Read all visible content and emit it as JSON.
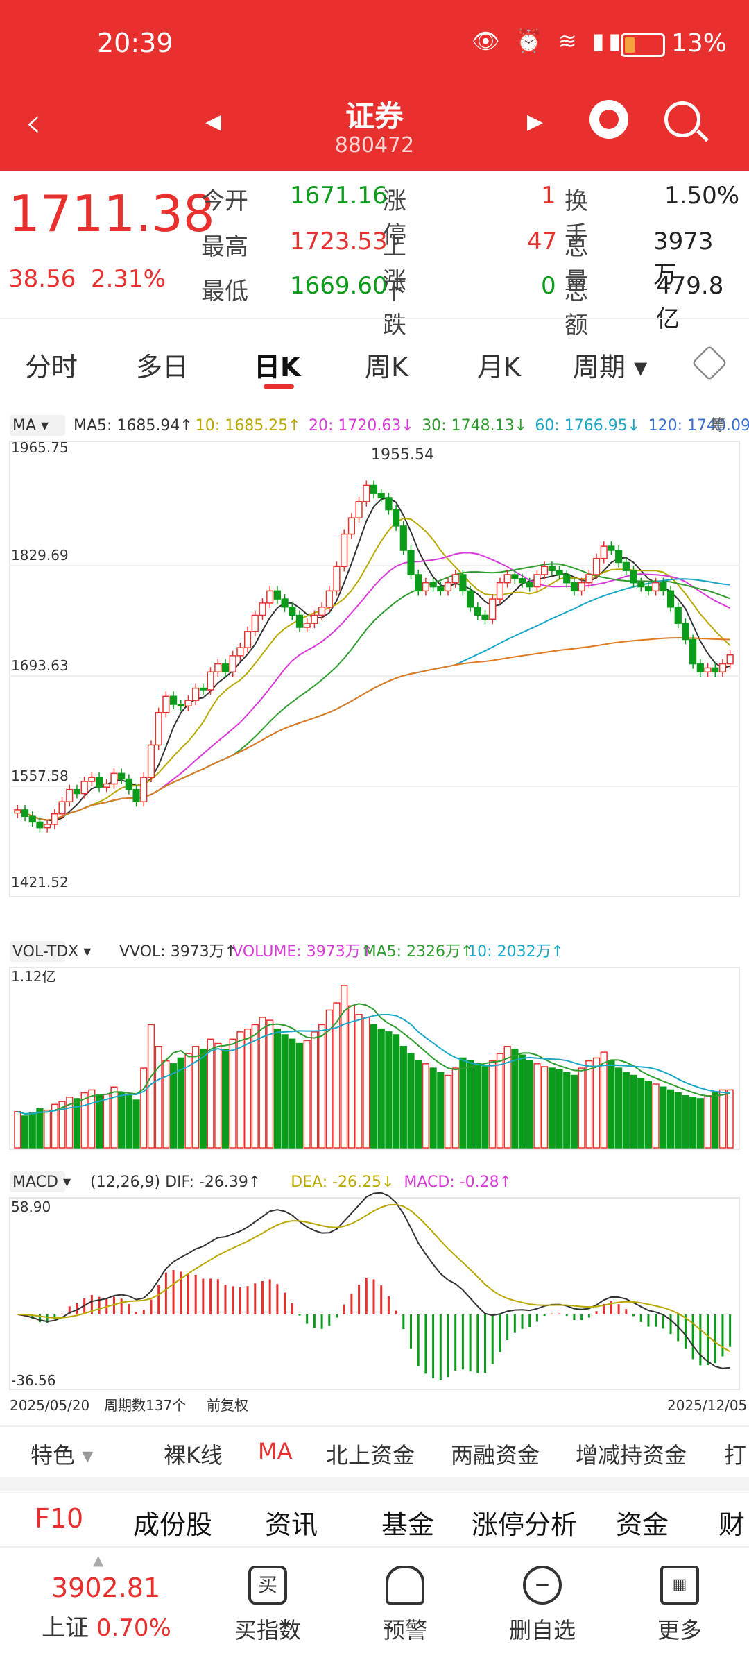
{
  "status": {
    "time": "20:39",
    "battery": "13%"
  },
  "header": {
    "back": "‹",
    "title": "证券",
    "code": "880472"
  },
  "quote": {
    "price": "1711.38",
    "change": "38.56",
    "change_pct": "2.31%",
    "rows": [
      {
        "l1": "今开",
        "v1": "1671.16",
        "l2": "涨停",
        "v2": "1",
        "l3": "换手",
        "v3": "1.50%"
      },
      {
        "l1": "最高",
        "v1": "1723.53",
        "l2": "上涨",
        "v2": "47",
        "l3": "总量",
        "v3": "3973万"
      },
      {
        "l1": "最低",
        "v1": "1669.60",
        "l2": "下跌",
        "v2": "0",
        "l3": "总额",
        "v3": "479.8亿"
      }
    ]
  },
  "tabs": [
    "分时",
    "多日",
    "日K",
    "周K",
    "月K",
    "周期"
  ],
  "ma_legend": {
    "name": "MA",
    "items": [
      "MA5: 1685.94↑",
      "10: 1685.25↑",
      "20: 1720.63↓",
      "30: 1748.13↓",
      "60: 1766.95↓",
      "120: 1740.09"
    ],
    "colors": [
      "#333333",
      "#b8a800",
      "#d83ad8",
      "#2e9c2e",
      "#19a7c8",
      "#3a6fd0"
    ],
    "chip": "筹"
  },
  "price_axis": [
    "1965.75",
    "1829.69",
    "1693.63",
    "1557.58",
    "1421.52"
  ],
  "peak_label": "1955.54",
  "vol_legend": {
    "name": "VOL-TDX",
    "items": [
      "VVOL: 3973万↑",
      "VOLUME: 3973万↑",
      "MA5: 2326万↑",
      "10: 2032万↑"
    ],
    "colors": [
      "#333333",
      "#d83ad8",
      "#2e9c2e",
      "#19a7c8"
    ],
    "top": "1.12亿"
  },
  "macd_legend": {
    "name": "MACD",
    "items": [
      "(12,26,9) DIF: -26.39↑",
      "DEA: -26.25↓",
      "MACD: -0.28↑"
    ],
    "colors": [
      "#333333",
      "#b8a800",
      "#d83ad8"
    ],
    "top": "58.90",
    "bottom": "-36.56"
  },
  "footer_axis": {
    "start": "2025/05/20",
    "count": "周期数137个",
    "adj": "前复权",
    "end": "2025/12/05"
  },
  "tools": [
    "特色",
    "裸K线",
    "MA",
    "北上资金",
    "两融资金",
    "增减持资金",
    "打"
  ],
  "f10": [
    "F10",
    "成份股",
    "资讯",
    "基金",
    "涨停分析",
    "资金",
    "财"
  ],
  "nav": {
    "index_value": "3902.81",
    "index_name": "上证",
    "index_pct": "0.70%",
    "buttons": [
      "买指数",
      "预警",
      "删自选",
      "更多"
    ]
  },
  "chart_data": {
    "type": "candlestick",
    "title": "",
    "period": "日K",
    "x_range": [
      "2025/05/20",
      "2025/12/05"
    ],
    "ylim": [
      1421.52,
      1965.75
    ],
    "close_series": [
      1520,
      1512,
      1505,
      1498,
      1502,
      1515,
      1530,
      1545,
      1540,
      1555,
      1560,
      1548,
      1552,
      1565,
      1558,
      1545,
      1530,
      1560,
      1600,
      1640,
      1660,
      1650,
      1648,
      1655,
      1670,
      1668,
      1690,
      1700,
      1690,
      1710,
      1720,
      1740,
      1760,
      1775,
      1790,
      1780,
      1770,
      1760,
      1745,
      1750,
      1760,
      1770,
      1790,
      1820,
      1860,
      1880,
      1900,
      1920,
      1910,
      1905,
      1890,
      1870,
      1840,
      1810,
      1790,
      1800,
      1795,
      1790,
      1800,
      1810,
      1790,
      1770,
      1760,
      1755,
      1780,
      1800,
      1810,
      1805,
      1800,
      1795,
      1810,
      1820,
      1815,
      1810,
      1800,
      1790,
      1800,
      1810,
      1830,
      1845,
      1840,
      1825,
      1815,
      1800,
      1795,
      1790,
      1800,
      1790,
      1770,
      1750,
      1730,
      1700,
      1690,
      1695,
      1690,
      1700,
      1711
    ],
    "volume_series_yi": [
      0.25,
      0.22,
      0.24,
      0.27,
      0.26,
      0.3,
      0.32,
      0.35,
      0.34,
      0.38,
      0.4,
      0.36,
      0.37,
      0.42,
      0.38,
      0.36,
      0.33,
      0.55,
      0.85,
      0.7,
      0.6,
      0.58,
      0.62,
      0.65,
      0.7,
      0.68,
      0.75,
      0.72,
      0.68,
      0.75,
      0.8,
      0.82,
      0.85,
      0.9,
      0.88,
      0.82,
      0.78,
      0.75,
      0.72,
      0.74,
      0.8,
      0.85,
      0.95,
      1.0,
      1.12,
      0.98,
      0.92,
      0.9,
      0.85,
      0.82,
      0.8,
      0.78,
      0.7,
      0.65,
      0.6,
      0.58,
      0.55,
      0.52,
      0.5,
      0.55,
      0.62,
      0.6,
      0.58,
      0.56,
      0.6,
      0.65,
      0.7,
      0.68,
      0.64,
      0.6,
      0.58,
      0.56,
      0.55,
      0.54,
      0.52,
      0.5,
      0.55,
      0.6,
      0.62,
      0.66,
      0.6,
      0.55,
      0.52,
      0.5,
      0.48,
      0.46,
      0.44,
      0.42,
      0.4,
      0.38,
      0.36,
      0.35,
      0.34,
      0.36,
      0.38,
      0.4,
      0.4
    ],
    "macd_range": [
      -36.56,
      58.9
    ]
  }
}
